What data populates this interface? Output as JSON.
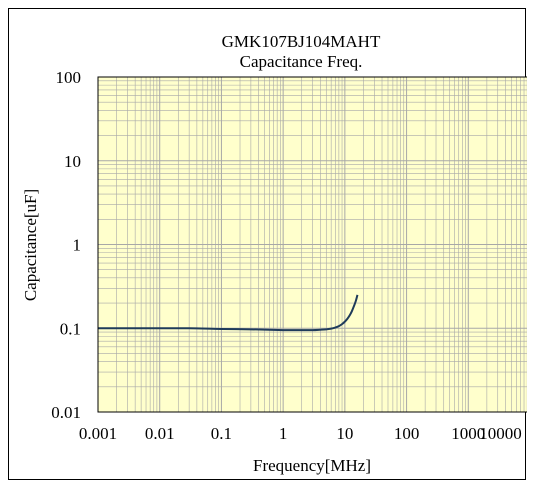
{
  "chart_data": {
    "type": "line",
    "title": "GMK107BJ104MAHT",
    "subtitle": "Capacitance Freq.",
    "xlabel": "Frequency[MHz]",
    "ylabel": "Capacitance[uF]",
    "x_scale": "log",
    "y_scale": "log",
    "xlim": [
      0.001,
      10000
    ],
    "ylim": [
      0.01,
      100
    ],
    "x_ticks": [
      0.001,
      0.01,
      0.1,
      1,
      10,
      100,
      1000,
      10000
    ],
    "x_tick_labels": [
      "0.001",
      "0.01",
      "0.1",
      "1",
      "10",
      "100",
      "1000",
      "10000"
    ],
    "y_ticks": [
      0.01,
      0.1,
      1,
      10,
      100
    ],
    "y_tick_labels": [
      "0.01",
      "0.1",
      "1",
      "10",
      "100"
    ],
    "grid": true,
    "plot_background": "#ffffcc",
    "grid_color": "#a8a8a8",
    "series": [
      {
        "color": "#1f3b5a",
        "x": [
          0.001,
          0.003,
          0.01,
          0.03,
          0.1,
          0.3,
          1,
          2,
          3,
          4,
          5,
          6,
          7,
          8,
          9,
          10,
          11,
          12,
          13,
          14,
          15,
          16
        ],
        "y": [
          0.1,
          0.1,
          0.1,
          0.1,
          0.098,
          0.097,
          0.095,
          0.095,
          0.095,
          0.096,
          0.097,
          0.099,
          0.102,
          0.106,
          0.112,
          0.12,
          0.13,
          0.143,
          0.16,
          0.183,
          0.21,
          0.25
        ]
      }
    ]
  }
}
